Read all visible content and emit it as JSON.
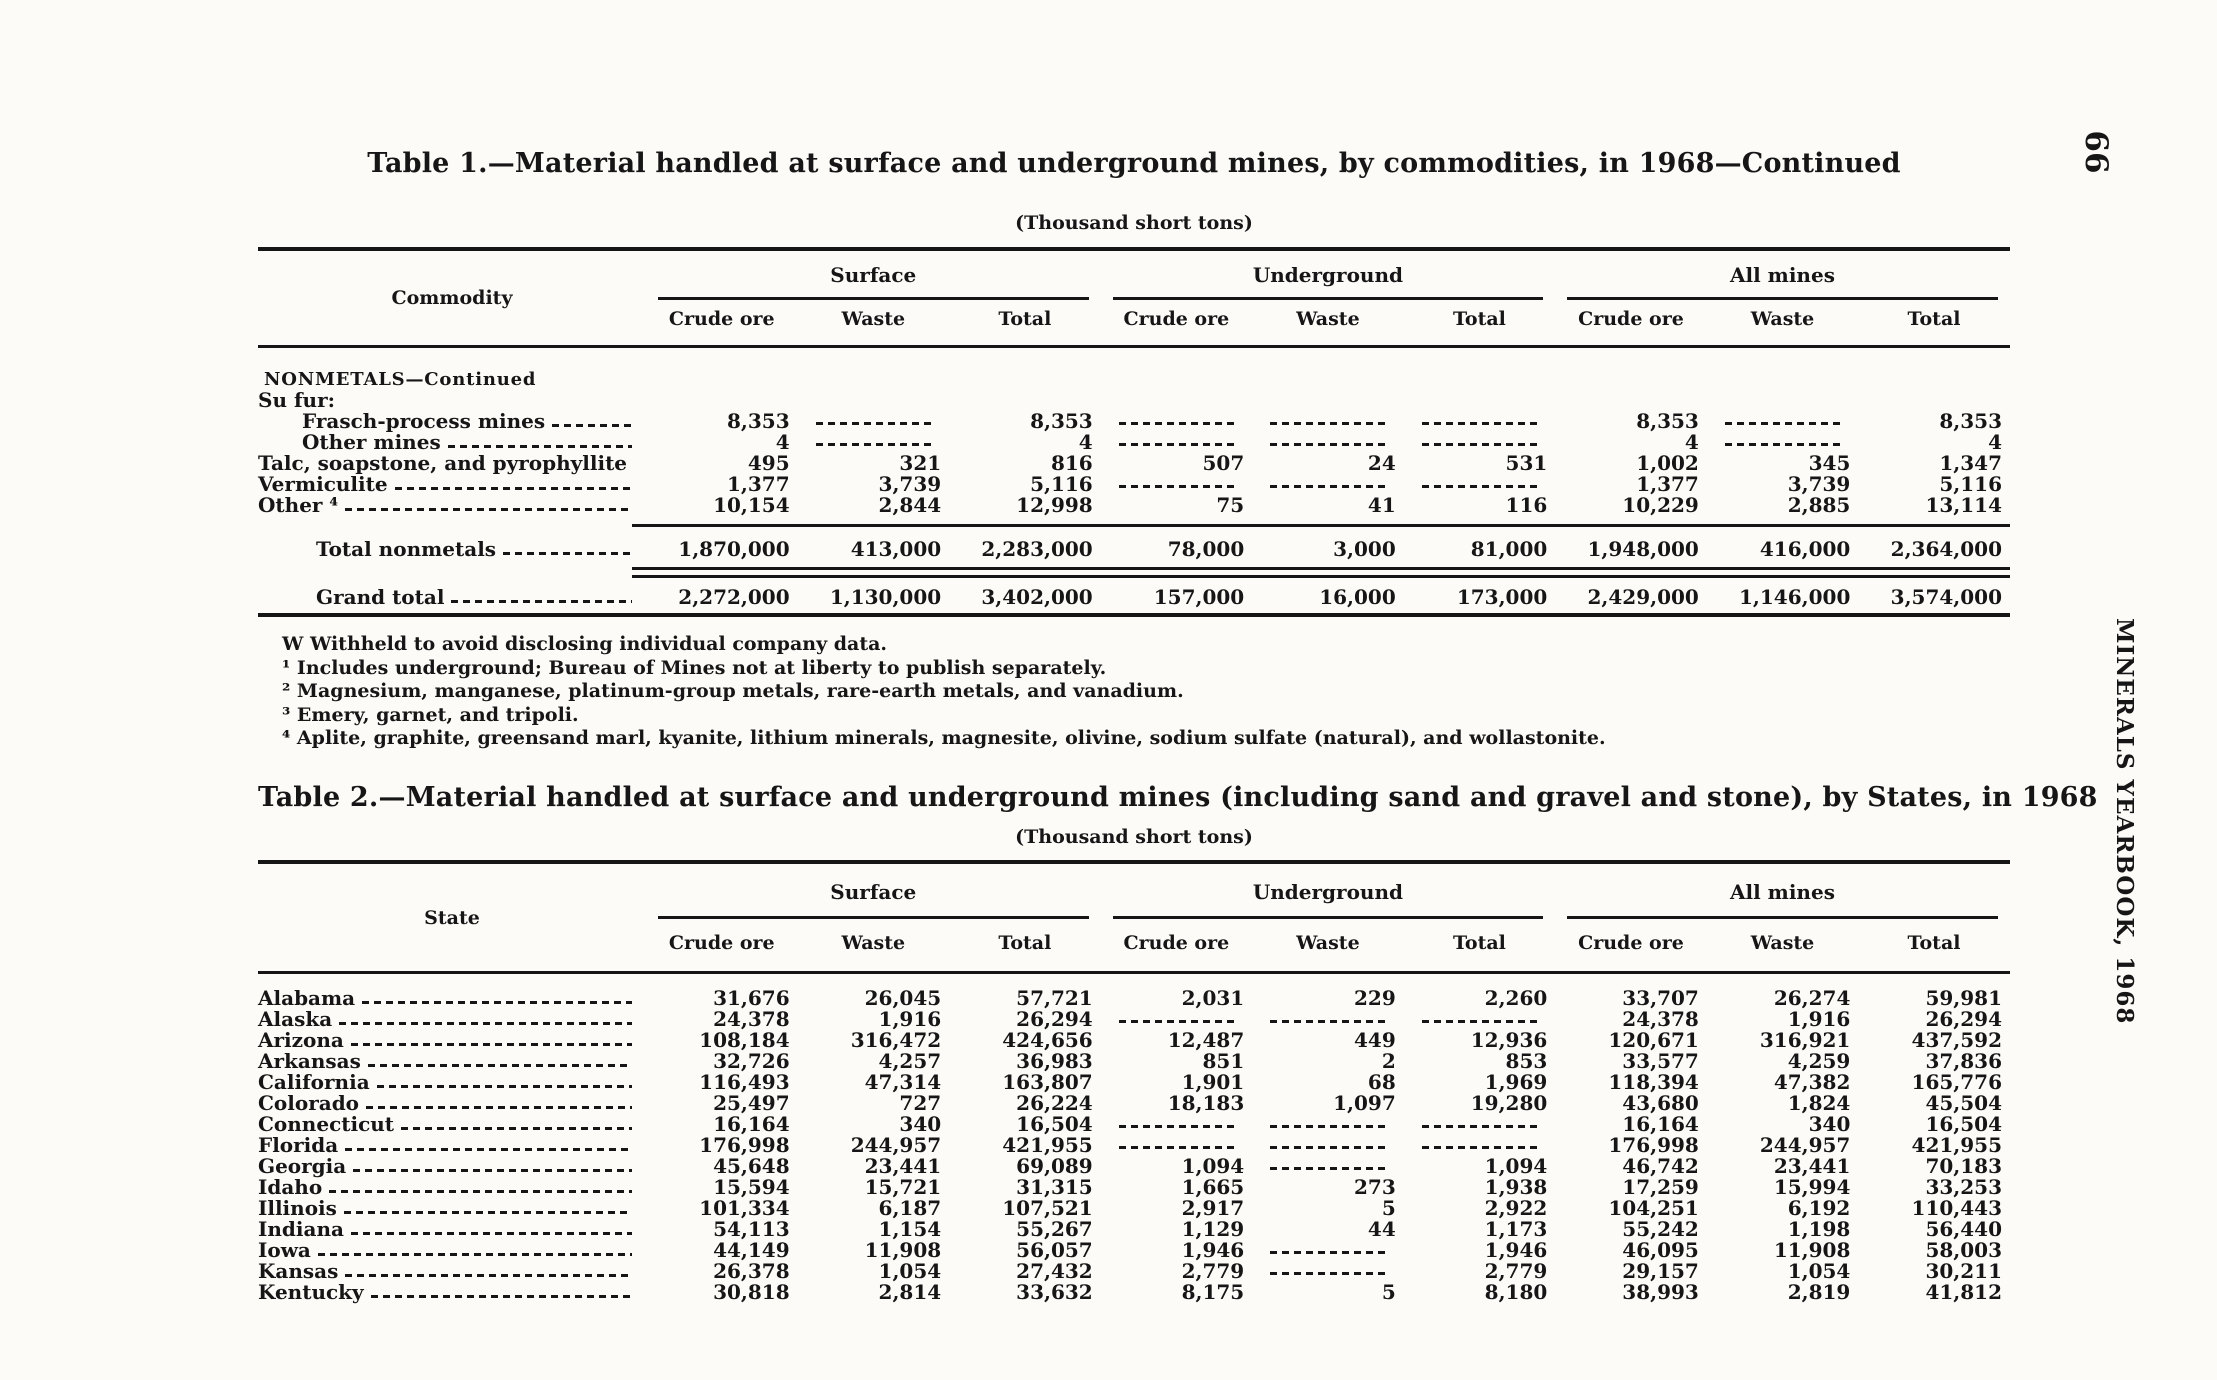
{
  "page": {
    "page_number": "66",
    "margin_text": "MINERALS YEARBOOK, 1968",
    "ink_color": "#161616",
    "paper_color": "#fcfbf8"
  },
  "table1": {
    "title": "Table 1.—Material handled at surface and underground mines, by commodities, in 1968—Continued",
    "units": "(Thousand short tons)",
    "stub_header": "Commodity",
    "groups": [
      "Surface",
      "Underground",
      "All mines"
    ],
    "sub_headers": [
      "Crude ore",
      "Waste",
      "Total"
    ],
    "rows": [
      {
        "label": "NONMETALS—Continued",
        "style": "section",
        "indent": 6,
        "leader": false,
        "cells": null
      },
      {
        "label": "Su fur:",
        "indent": 0,
        "leader": false,
        "cells": null
      },
      {
        "label": "Frasch-process mines",
        "indent": 44,
        "cells": [
          "8,353",
          "",
          "8,353",
          "",
          "",
          "",
          "8,353",
          "",
          "8,353"
        ]
      },
      {
        "label": "Other mines",
        "indent": 44,
        "cells": [
          "4",
          "",
          "4",
          "",
          "",
          "",
          "4",
          "",
          "4"
        ]
      },
      {
        "label": "Talc, soapstone, and pyrophyllite",
        "indent": 0,
        "cells": [
          "495",
          "321",
          "816",
          "507",
          "24",
          "531",
          "1,002",
          "345",
          "1,347"
        ]
      },
      {
        "label": "Vermiculite",
        "indent": 0,
        "cells": [
          "1,377",
          "3,739",
          "5,116",
          "",
          "",
          "",
          "1,377",
          "3,739",
          "5,116"
        ]
      },
      {
        "label": "Other ⁴",
        "indent": 0,
        "cells": [
          "10,154",
          "2,844",
          "12,998",
          "75",
          "41",
          "116",
          "10,229",
          "2,885",
          "13,114"
        ]
      }
    ],
    "totals_a": [
      {
        "label": "Total nonmetals",
        "indent": 58,
        "cells": [
          "1,870,000",
          "413,000",
          "2,283,000",
          "78,000",
          "3,000",
          "81,000",
          "1,948,000",
          "416,000",
          "2,364,000"
        ]
      }
    ],
    "totals_b": [
      {
        "label": "Grand total",
        "indent": 58,
        "cells": [
          "2,272,000",
          "1,130,000",
          "3,402,000",
          "157,000",
          "16,000",
          "173,000",
          "2,429,000",
          "1,146,000",
          "3,574,000"
        ]
      }
    ],
    "footnotes": [
      "W  Withheld to avoid disclosing individual company data.",
      "¹ Includes underground; Bureau of Mines not at liberty to publish separately.",
      "² Magnesium, manganese, platinum-group metals, rare-earth metals, and vanadium.",
      "³ Emery, garnet, and tripoli.",
      "⁴ Aplite, graphite, greensand marl, kyanite, lithium minerals, magnesite, olivine, sodium sulfate (natural), and wollastonite."
    ]
  },
  "table2": {
    "title": "Table 2.—Material handled at surface and underground mines (including sand and gravel and stone), by States, in 1968",
    "units": "(Thousand short tons)",
    "stub_header": "State",
    "groups": [
      "Surface",
      "Underground",
      "All mines"
    ],
    "sub_headers": [
      "Crude ore",
      "Waste",
      "Total"
    ],
    "rows": [
      {
        "label": "Alabama",
        "indent": 0,
        "cells": [
          "31,676",
          "26,045",
          "57,721",
          "2,031",
          "229",
          "2,260",
          "33,707",
          "26,274",
          "59,981"
        ]
      },
      {
        "label": "Alaska",
        "indent": 0,
        "cells": [
          "24,378",
          "1,916",
          "26,294",
          "",
          "",
          "",
          "24,378",
          "1,916",
          "26,294"
        ]
      },
      {
        "label": "Arizona",
        "indent": 0,
        "cells": [
          "108,184",
          "316,472",
          "424,656",
          "12,487",
          "449",
          "12,936",
          "120,671",
          "316,921",
          "437,592"
        ]
      },
      {
        "label": "Arkansas",
        "indent": 0,
        "cells": [
          "32,726",
          "4,257",
          "36,983",
          "851",
          "2",
          "853",
          "33,577",
          "4,259",
          "37,836"
        ]
      },
      {
        "label": "California",
        "indent": 0,
        "cells": [
          "116,493",
          "47,314",
          "163,807",
          "1,901",
          "68",
          "1,969",
          "118,394",
          "47,382",
          "165,776"
        ]
      },
      {
        "label": "Colorado",
        "indent": 0,
        "cells": [
          "25,497",
          "727",
          "26,224",
          "18,183",
          "1,097",
          "19,280",
          "43,680",
          "1,824",
          "45,504"
        ]
      },
      {
        "label": "Connecticut",
        "indent": 0,
        "cells": [
          "16,164",
          "340",
          "16,504",
          "",
          "",
          "",
          "16,164",
          "340",
          "16,504"
        ]
      },
      {
        "label": "Florida",
        "indent": 0,
        "cells": [
          "176,998",
          "244,957",
          "421,955",
          "",
          "",
          "",
          "176,998",
          "244,957",
          "421,955"
        ]
      },
      {
        "label": "Georgia",
        "indent": 0,
        "cells": [
          "45,648",
          "23,441",
          "69,089",
          "1,094",
          "",
          "1,094",
          "46,742",
          "23,441",
          "70,183"
        ]
      },
      {
        "label": "Idaho",
        "indent": 0,
        "cells": [
          "15,594",
          "15,721",
          "31,315",
          "1,665",
          "273",
          "1,938",
          "17,259",
          "15,994",
          "33,253"
        ]
      },
      {
        "label": "Illinois",
        "indent": 0,
        "cells": [
          "101,334",
          "6,187",
          "107,521",
          "2,917",
          "5",
          "2,922",
          "104,251",
          "6,192",
          "110,443"
        ]
      },
      {
        "label": "Indiana",
        "indent": 0,
        "cells": [
          "54,113",
          "1,154",
          "55,267",
          "1,129",
          "44",
          "1,173",
          "55,242",
          "1,198",
          "56,440"
        ]
      },
      {
        "label": "Iowa",
        "indent": 0,
        "cells": [
          "44,149",
          "11,908",
          "56,057",
          "1,946",
          "",
          "1,946",
          "46,095",
          "11,908",
          "58,003"
        ]
      },
      {
        "label": "Kansas",
        "indent": 0,
        "cells": [
          "26,378",
          "1,054",
          "27,432",
          "2,779",
          "",
          "2,779",
          "29,157",
          "1,054",
          "30,211"
        ]
      },
      {
        "label": "Kentucky",
        "indent": 0,
        "cells": [
          "30,818",
          "2,814",
          "33,632",
          "8,175",
          "5",
          "8,180",
          "38,993",
          "2,819",
          "41,812"
        ]
      }
    ]
  }
}
